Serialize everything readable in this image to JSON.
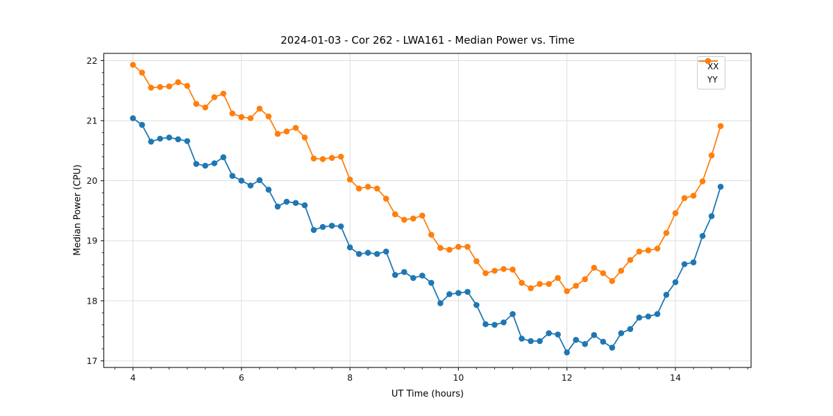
{
  "chart_data": {
    "type": "line",
    "title": "2024-01-03 - Cor 262 - LWA161 - Median Power vs. Time",
    "xlabel": "UT Time (hours)",
    "ylabel": "Median Power (CPU)",
    "xlim": [
      3.462,
      15.395
    ],
    "ylim": [
      16.89,
      22.12
    ],
    "x_major_ticks": [
      4,
      6,
      8,
      10,
      12,
      14
    ],
    "y_major_ticks": [
      17,
      18,
      19,
      20,
      21,
      22
    ],
    "x_minor_step": 0.33333,
    "y_minor_step": 0.2,
    "grid": true,
    "grid_color": "#dddddd",
    "spine_color": "#222222",
    "legend_position": "upper right",
    "x": [
      4.0,
      4.167,
      4.333,
      4.5,
      4.667,
      4.833,
      5.0,
      5.167,
      5.333,
      5.5,
      5.667,
      5.833,
      6.0,
      6.167,
      6.333,
      6.5,
      6.667,
      6.833,
      7.0,
      7.167,
      7.333,
      7.5,
      7.667,
      7.833,
      8.0,
      8.167,
      8.333,
      8.5,
      8.667,
      8.833,
      9.0,
      9.167,
      9.333,
      9.5,
      9.667,
      9.833,
      10.0,
      10.167,
      10.333,
      10.5,
      10.667,
      10.833,
      11.0,
      11.167,
      11.333,
      11.5,
      11.667,
      11.833,
      12.0,
      12.167,
      12.333,
      12.5,
      12.667,
      12.833,
      13.0,
      13.167,
      13.333,
      13.5,
      13.667,
      13.833,
      14.0,
      14.167,
      14.333,
      14.5,
      14.667,
      14.833
    ],
    "series": [
      {
        "name": "XX",
        "color": "#1f77b4",
        "values": [
          21.04,
          20.93,
          20.65,
          20.7,
          20.72,
          20.69,
          20.66,
          20.28,
          20.25,
          20.29,
          20.39,
          20.08,
          20.0,
          19.92,
          20.01,
          19.85,
          19.57,
          19.65,
          19.63,
          19.59,
          19.18,
          19.23,
          19.25,
          19.24,
          18.89,
          18.78,
          18.8,
          18.78,
          18.82,
          18.43,
          18.48,
          18.38,
          18.42,
          18.3,
          17.96,
          18.11,
          18.13,
          18.15,
          17.93,
          17.61,
          17.6,
          17.64,
          17.78,
          17.37,
          17.33,
          17.33,
          17.46,
          17.44,
          17.14,
          17.35,
          17.28,
          17.43,
          17.32,
          17.22,
          17.46,
          17.53,
          17.72,
          17.74,
          17.78,
          18.1,
          18.31,
          18.61,
          18.64,
          19.08,
          19.41,
          19.9
        ]
      },
      {
        "name": "YY",
        "color": "#ff7f0e",
        "values": [
          21.93,
          21.8,
          21.55,
          21.56,
          21.57,
          21.64,
          21.58,
          21.28,
          21.22,
          21.39,
          21.45,
          21.12,
          21.06,
          21.04,
          21.2,
          21.07,
          20.78,
          20.82,
          20.88,
          20.72,
          20.37,
          20.36,
          20.38,
          20.4,
          20.02,
          19.87,
          19.9,
          19.87,
          19.7,
          19.44,
          19.35,
          19.37,
          19.42,
          19.1,
          18.88,
          18.85,
          18.9,
          18.9,
          18.66,
          18.46,
          18.5,
          18.53,
          18.52,
          18.3,
          18.21,
          18.28,
          18.28,
          18.38,
          18.16,
          18.25,
          18.36,
          18.55,
          18.46,
          18.33,
          18.5,
          18.68,
          18.82,
          18.84,
          18.87,
          19.13,
          19.46,
          19.71,
          19.75,
          19.99,
          20.42,
          20.91
        ]
      }
    ]
  }
}
